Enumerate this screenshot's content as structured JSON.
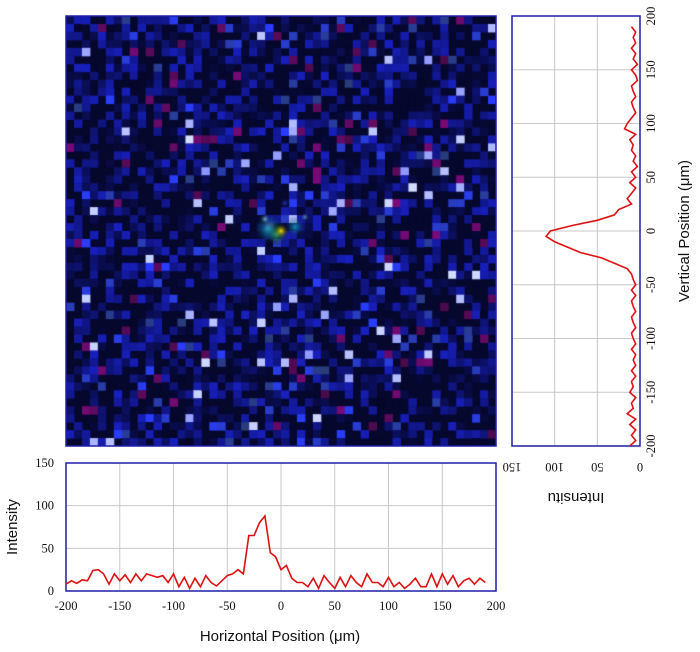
{
  "chart_data": [
    {
      "type": "heatmap",
      "panel": "main-image",
      "xlim": [
        -200,
        200
      ],
      "ylim": [
        -200,
        200
      ],
      "grid": "off",
      "background_color": "#05072c",
      "noise_color": "#2a3fd0",
      "hot_spot": {
        "x": 0,
        "y": 0,
        "colors": [
          "#ffe000",
          "#35d08a",
          "#14c8e6",
          "#8ad4ff"
        ]
      }
    },
    {
      "type": "line",
      "panel": "horizontal-profile",
      "xlabel": "Horizontal Position (μm)",
      "ylabel": "Intensity",
      "xlim": [
        -200,
        200
      ],
      "ylim": [
        0,
        150
      ],
      "x_ticks": [
        -200,
        -150,
        -100,
        -50,
        0,
        50,
        100,
        150,
        200
      ],
      "x_tick_labels": [
        "-200",
        "-150",
        "-100",
        "-50",
        "0",
        "50",
        "100",
        "150",
        "200"
      ],
      "y_ticks": [
        0,
        50,
        100,
        150
      ],
      "y_tick_labels": [
        "0",
        "50",
        "100",
        "150"
      ],
      "grid": "on",
      "line_color": "#dd1111",
      "x": [
        -200,
        -195,
        -190,
        -185,
        -180,
        -175,
        -170,
        -165,
        -160,
        -155,
        -150,
        -145,
        -140,
        -135,
        -130,
        -125,
        -120,
        -115,
        -110,
        -105,
        -100,
        -95,
        -90,
        -85,
        -80,
        -75,
        -70,
        -65,
        -60,
        -55,
        -50,
        -45,
        -40,
        -35,
        -30,
        -25,
        -20,
        -15,
        -10,
        -5,
        0,
        5,
        10,
        15,
        20,
        25,
        30,
        35,
        40,
        45,
        50,
        55,
        60,
        65,
        70,
        75,
        80,
        85,
        90,
        95,
        100,
        105,
        110,
        115,
        120,
        125,
        130,
        135,
        140,
        145,
        150,
        155,
        160,
        165,
        170,
        175,
        180,
        185,
        190
      ],
      "y": [
        8,
        12,
        9,
        13,
        12,
        24,
        25,
        20,
        8,
        20,
        12,
        19,
        10,
        20,
        12,
        20,
        18,
        16,
        18,
        10,
        20,
        5,
        16,
        3,
        15,
        5,
        18,
        10,
        6,
        12,
        18,
        20,
        25,
        20,
        65,
        65,
        80,
        88,
        45,
        40,
        25,
        30,
        15,
        10,
        10,
        5,
        15,
        3,
        18,
        10,
        3,
        16,
        5,
        18,
        10,
        5,
        20,
        10,
        10,
        5,
        16,
        5,
        10,
        3,
        8,
        15,
        5,
        5,
        20,
        5,
        20,
        8,
        18,
        5,
        12,
        15,
        8,
        15,
        10
      ]
    },
    {
      "type": "line",
      "panel": "vertical-profile",
      "xlabel": "Intensitu",
      "ylabel": "Vertical Position (μm)",
      "xlim": [
        150,
        0
      ],
      "ylim": [
        -200,
        200
      ],
      "x_ticks": [
        150,
        100,
        50,
        0
      ],
      "x_tick_labels": [
        "150",
        "100",
        "50",
        "0"
      ],
      "y_ticks": [
        -200,
        -150,
        -100,
        -50,
        0,
        50,
        100,
        150,
        200
      ],
      "y_tick_labels": [
        "-200",
        "-150",
        "-100",
        "-50",
        "0",
        "50",
        "100",
        "150",
        "200"
      ],
      "grid": "on",
      "line_color": "#dd1111",
      "y": [
        -200,
        -195,
        -190,
        -185,
        -180,
        -175,
        -170,
        -165,
        -160,
        -155,
        -150,
        -145,
        -140,
        -135,
        -130,
        -125,
        -120,
        -115,
        -110,
        -105,
        -100,
        -95,
        -90,
        -85,
        -80,
        -75,
        -70,
        -65,
        -60,
        -55,
        -50,
        -45,
        -40,
        -35,
        -30,
        -25,
        -20,
        -15,
        -10,
        -5,
        0,
        5,
        10,
        15,
        20,
        25,
        30,
        35,
        40,
        45,
        50,
        55,
        60,
        65,
        70,
        75,
        80,
        85,
        90,
        95,
        100,
        105,
        110,
        115,
        120,
        125,
        130,
        135,
        140,
        145,
        150,
        155,
        160,
        165,
        170,
        175,
        180,
        185,
        190
      ],
      "x": [
        12,
        5,
        10,
        5,
        12,
        5,
        15,
        8,
        10,
        5,
        12,
        8,
        10,
        5,
        10,
        5,
        8,
        5,
        10,
        5,
        8,
        10,
        5,
        8,
        10,
        5,
        8,
        10,
        5,
        10,
        5,
        8,
        10,
        15,
        30,
        45,
        70,
        85,
        100,
        110,
        105,
        80,
        50,
        30,
        25,
        10,
        15,
        10,
        5,
        12,
        5,
        10,
        3,
        8,
        5,
        10,
        8,
        12,
        5,
        18,
        15,
        10,
        5,
        8,
        10,
        5,
        8,
        10,
        3,
        5,
        10,
        3,
        8,
        5,
        10,
        5,
        8,
        5,
        10
      ]
    }
  ]
}
